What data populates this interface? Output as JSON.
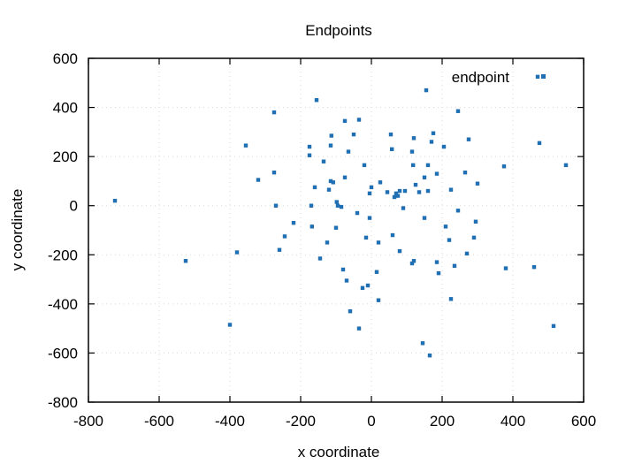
{
  "chart_data": {
    "type": "scatter",
    "title": "Endpoints",
    "xlabel": "x coordinate",
    "ylabel": "y coordinate",
    "xlim": [
      -800,
      600
    ],
    "ylim": [
      -800,
      600
    ],
    "xticks": [
      -800,
      -600,
      -400,
      -200,
      0,
      200,
      400,
      600
    ],
    "yticks": [
      -800,
      -600,
      -400,
      -200,
      0,
      200,
      400,
      600
    ],
    "xtick_labels": [
      "-800",
      "-600",
      "-400",
      "-200",
      "0",
      "200",
      "400",
      "600"
    ],
    "ytick_labels": [
      "-800",
      "-600",
      "-400",
      "-200",
      "0",
      "200",
      "400",
      "600"
    ],
    "grid": true,
    "legend_position": "top-right",
    "series": [
      {
        "name": "endpoint",
        "color": "#1f6fb2",
        "points": [
          [
            -725,
            20
          ],
          [
            -525,
            -225
          ],
          [
            -400,
            -485
          ],
          [
            -380,
            -190
          ],
          [
            -355,
            245
          ],
          [
            -320,
            105
          ],
          [
            -275,
            380
          ],
          [
            -275,
            135
          ],
          [
            -270,
            0
          ],
          [
            -260,
            -180
          ],
          [
            -245,
            -125
          ],
          [
            -220,
            -70
          ],
          [
            -175,
            240
          ],
          [
            -175,
            205
          ],
          [
            -170,
            0
          ],
          [
            -168,
            -85
          ],
          [
            -160,
            75
          ],
          [
            -155,
            430
          ],
          [
            -145,
            -215
          ],
          [
            -135,
            180
          ],
          [
            -125,
            -150
          ],
          [
            -120,
            65
          ],
          [
            -115,
            100
          ],
          [
            -115,
            245
          ],
          [
            -113,
            285
          ],
          [
            -108,
            95
          ],
          [
            -100,
            -90
          ],
          [
            -98,
            15
          ],
          [
            -95,
            0
          ],
          [
            -85,
            -5
          ],
          [
            -80,
            -260
          ],
          [
            -75,
            115
          ],
          [
            -75,
            345
          ],
          [
            -70,
            -305
          ],
          [
            -65,
            220
          ],
          [
            -60,
            -430
          ],
          [
            -50,
            290
          ],
          [
            -40,
            -30
          ],
          [
            -35,
            350
          ],
          [
            -35,
            -500
          ],
          [
            -25,
            -335
          ],
          [
            -20,
            165
          ],
          [
            -15,
            -130
          ],
          [
            -10,
            -325
          ],
          [
            -5,
            50
          ],
          [
            -5,
            -50
          ],
          [
            0,
            75
          ],
          [
            15,
            -270
          ],
          [
            20,
            -385
          ],
          [
            20,
            -150
          ],
          [
            25,
            95
          ],
          [
            45,
            55
          ],
          [
            55,
            290
          ],
          [
            58,
            230
          ],
          [
            60,
            -120
          ],
          [
            65,
            35
          ],
          [
            70,
            50
          ],
          [
            75,
            40
          ],
          [
            80,
            60
          ],
          [
            80,
            -185
          ],
          [
            90,
            -10
          ],
          [
            95,
            60
          ],
          [
            115,
            220
          ],
          [
            115,
            -235
          ],
          [
            118,
            165
          ],
          [
            120,
            275
          ],
          [
            120,
            -225
          ],
          [
            125,
            85
          ],
          [
            135,
            55
          ],
          [
            145,
            -560
          ],
          [
            150,
            -50
          ],
          [
            150,
            115
          ],
          [
            155,
            470
          ],
          [
            160,
            60
          ],
          [
            160,
            165
          ],
          [
            165,
            -610
          ],
          [
            170,
            260
          ],
          [
            175,
            295
          ],
          [
            185,
            130
          ],
          [
            185,
            -230
          ],
          [
            190,
            -275
          ],
          [
            205,
            240
          ],
          [
            210,
            -85
          ],
          [
            220,
            -140
          ],
          [
            225,
            -380
          ],
          [
            225,
            65
          ],
          [
            235,
            -245
          ],
          [
            245,
            385
          ],
          [
            245,
            -20
          ],
          [
            265,
            135
          ],
          [
            270,
            -195
          ],
          [
            275,
            270
          ],
          [
            290,
            -130
          ],
          [
            295,
            -65
          ],
          [
            300,
            90
          ],
          [
            375,
            160
          ],
          [
            380,
            -255
          ],
          [
            460,
            -250
          ],
          [
            470,
            525
          ],
          [
            475,
            255
          ],
          [
            515,
            -490
          ],
          [
            550,
            165
          ]
        ]
      }
    ]
  }
}
